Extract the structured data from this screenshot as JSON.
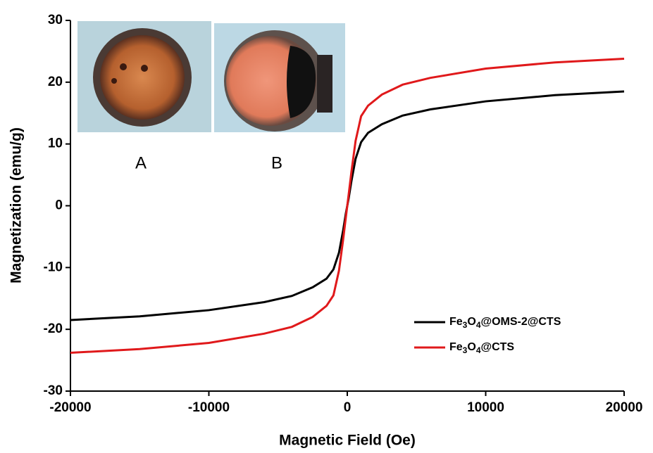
{
  "chart_data": {
    "type": "line",
    "x_label": "Magnetic Field (Oe)",
    "y_label": "Magnetization (emu/g)",
    "annotations": [
      "A",
      "B"
    ],
    "x": [
      -20000,
      -15000,
      -10000,
      -6000,
      -4000,
      -2500,
      -1500,
      -1000,
      -600,
      -300,
      -100,
      0,
      100,
      300,
      600,
      1000,
      1500,
      2500,
      4000,
      6000,
      10000,
      15000,
      20000
    ],
    "series": [
      {
        "name": "Fe3O4@OMS-2@CTS",
        "color": "#000000",
        "values": [
          -18.5,
          -17.9,
          -16.9,
          -15.6,
          -14.6,
          -13.2,
          -11.8,
          -10.3,
          -7.6,
          -4,
          -1.2,
          0,
          1.2,
          4,
          7.6,
          10.3,
          11.8,
          13.2,
          14.6,
          15.6,
          16.9,
          17.9,
          18.5
        ]
      },
      {
        "name": "Fe3O4@CTS",
        "color": "#e0191b",
        "values": [
          -23.8,
          -23.2,
          -22.2,
          -20.7,
          -19.6,
          -18,
          -16.2,
          -14.5,
          -10.5,
          -5.5,
          -1.8,
          0,
          1.8,
          5.5,
          10.5,
          14.5,
          16.2,
          18,
          19.6,
          20.7,
          22.2,
          23.2,
          23.8
        ]
      }
    ],
    "xlim": [
      -20000,
      20000
    ],
    "xticks": [
      -20000,
      -10000,
      0,
      10000,
      20000
    ],
    "ylim": [
      -30,
      30
    ],
    "yticks": [
      -30,
      -20,
      -10,
      0,
      10,
      20,
      30
    ],
    "legend": "lower right"
  }
}
